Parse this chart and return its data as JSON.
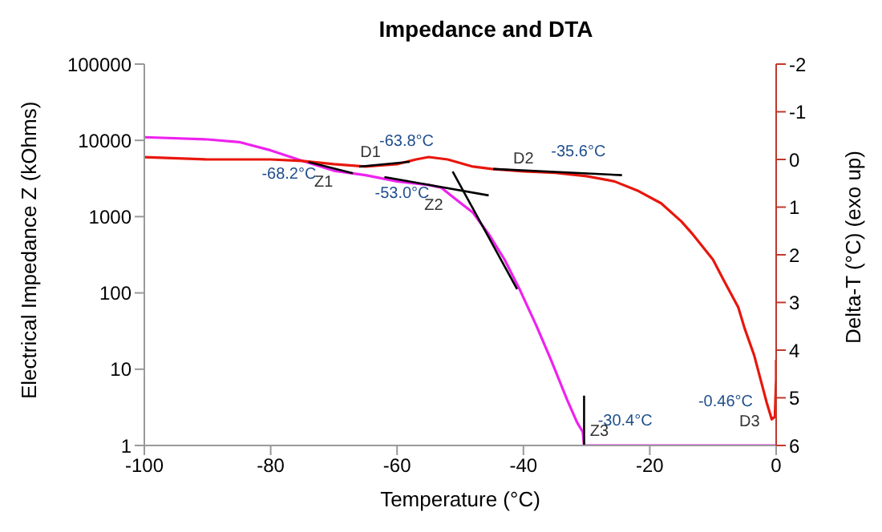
{
  "chart_data": {
    "type": "line",
    "title": "Impedance and DTA",
    "xlabel": "Temperature (°C)",
    "ylabel": "Electrical Impedance Z (kOhms)",
    "y2label": "Delta-T (°C) (exo up)",
    "xlim": [
      -100,
      0
    ],
    "xticks": [
      -100,
      -80,
      -60,
      -40,
      -20,
      0
    ],
    "log": "y",
    "ylim": [
      1,
      100000
    ],
    "yticks": [
      1,
      10,
      100,
      1000,
      10000,
      100000
    ],
    "y2lim": [
      6,
      -2
    ],
    "y2ticks": [
      -2,
      -1,
      0,
      1,
      2,
      3,
      4,
      5,
      6
    ],
    "grid": false,
    "legend": false,
    "marker": "none",
    "series": [
      {
        "color": "#ee22ee",
        "x": [
          -100,
          -90,
          -85,
          -80,
          -75,
          -70,
          -65,
          -60,
          -55,
          -53,
          -51.5,
          -48,
          -45.5,
          -43,
          -40.5,
          -38,
          -35.6,
          -33.1,
          -31.5,
          -30.6,
          -30.4,
          -20,
          -10,
          0
        ],
        "values": [
          11000,
          10300,
          9500,
          7400,
          5400,
          4000,
          3500,
          2900,
          2600,
          2400,
          1900,
          1130,
          590,
          275,
          107,
          38,
          13,
          4,
          2,
          1.5,
          1,
          1,
          1,
          1
        ]
      },
      {
        "color": "#e8160c",
        "axis": "y2",
        "x": [
          -100,
          -90,
          -80,
          -75,
          -70,
          -65,
          -60,
          -57,
          -55,
          -52,
          -48,
          -45,
          -40,
          -35,
          -30,
          -25.6,
          -22,
          -18.2,
          -15,
          -13.2,
          -10,
          -8.2,
          -6,
          -5,
          -3.5,
          -2.5,
          -1.5,
          -0.7,
          -0.2,
          0,
          0
        ],
        "values": [
          -0.05,
          0,
          0,
          0.03,
          0.1,
          0.15,
          0.1,
          0,
          -0.05,
          0,
          0.15,
          0.2,
          0.25,
          0.28,
          0.35,
          0.46,
          0.65,
          0.92,
          1.3,
          1.57,
          2.1,
          2.56,
          3.1,
          3.54,
          4.1,
          4.6,
          5.1,
          5.45,
          5.4,
          4.6,
          4.2
        ]
      },
      {
        "color": "#000000",
        "x": [
          -74,
          -67
        ],
        "values": [
          5200,
          3700
        ]
      },
      {
        "color": "#000000",
        "axis": "y2",
        "x": [
          -66,
          -58
        ],
        "values": [
          0.15,
          0.05
        ]
      },
      {
        "color": "#000000",
        "x": [
          -62,
          -45.5
        ],
        "values": [
          3300,
          1900
        ]
      },
      {
        "color": "#000000",
        "x": [
          -51.2,
          -41
        ],
        "values": [
          3900,
          112
        ]
      },
      {
        "color": "#000000",
        "axis": "y2",
        "x": [
          -44.8,
          -24.4
        ],
        "values": [
          0.2,
          0.33
        ]
      },
      {
        "color": "#000000",
        "x": [
          -30.4,
          -30.4
        ],
        "values": [
          4.5,
          1
        ]
      }
    ],
    "annotations": [
      "-68.2°C",
      "Z1",
      "D1",
      "-63.8°C",
      "-53.0°C",
      "Z2",
      "D2",
      "-35.6°C",
      "-30.4°C",
      "Z3",
      "-0.46°C",
      "D3"
    ]
  }
}
